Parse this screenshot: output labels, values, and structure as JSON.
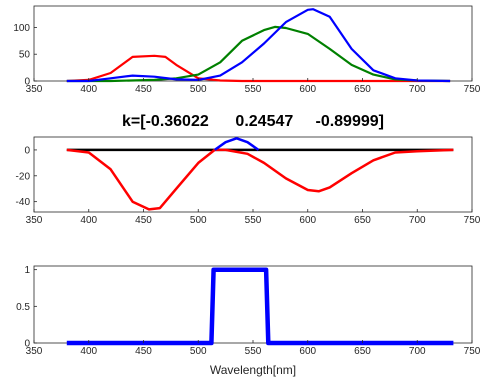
{
  "chart_data": [
    {
      "type": "line",
      "title": "",
      "xlabel": "",
      "ylabel": "",
      "xlim": [
        350,
        750
      ],
      "ylim": [
        0,
        140
      ],
      "x_ticks": [
        "350",
        "400",
        "450",
        "500",
        "550",
        "600",
        "650",
        "700",
        "750"
      ],
      "y_ticks": [
        "0",
        "50",
        "100"
      ],
      "grid": false,
      "series": [
        {
          "color": "#ff0000",
          "x": [
            380,
            400,
            420,
            440,
            460,
            470,
            480,
            500,
            520,
            540,
            560,
            600,
            650,
            700,
            730
          ],
          "y": [
            0,
            2,
            15,
            45,
            47,
            45,
            30,
            5,
            1,
            0,
            0,
            0,
            0,
            0,
            0
          ]
        },
        {
          "color": "#008000",
          "x": [
            380,
            420,
            460,
            480,
            500,
            520,
            540,
            560,
            570,
            580,
            600,
            620,
            640,
            660,
            680,
            700,
            730
          ],
          "y": [
            0,
            0,
            2,
            5,
            12,
            35,
            75,
            95,
            101,
            99,
            88,
            60,
            30,
            12,
            3,
            1,
            0
          ]
        },
        {
          "color": "#0000ff",
          "x": [
            380,
            400,
            420,
            440,
            460,
            480,
            500,
            520,
            540,
            560,
            580,
            600,
            605,
            620,
            640,
            660,
            680,
            700,
            730
          ],
          "y": [
            0,
            0,
            5,
            10,
            8,
            3,
            2,
            10,
            35,
            70,
            110,
            133,
            134,
            120,
            60,
            20,
            5,
            1,
            0
          ]
        }
      ]
    },
    {
      "type": "line",
      "title": "k=[-0.36022      0.24547     -0.89999]",
      "xlabel": "",
      "ylabel": "",
      "xlim": [
        350,
        750
      ],
      "ylim": [
        -48,
        10
      ],
      "x_ticks": [
        "350",
        "400",
        "450",
        "500",
        "550",
        "600",
        "650",
        "700",
        "750"
      ],
      "y_ticks": [
        "-40",
        "-20",
        "0"
      ],
      "grid": false,
      "series": [
        {
          "color": "#000000",
          "x": [
            380,
            733
          ],
          "y": [
            0,
            0
          ]
        },
        {
          "color": "#ff0000",
          "x": [
            380,
            400,
            420,
            440,
            455,
            465,
            480,
            500,
            515,
            525,
            545,
            560,
            580,
            600,
            610,
            620,
            640,
            660,
            680,
            700,
            733
          ],
          "y": [
            0,
            -2,
            -15,
            -40,
            -46,
            -45,
            -30,
            -10,
            0,
            0,
            -3,
            -10,
            -22,
            -31,
            -32,
            -29,
            -18,
            -8,
            -2,
            -1,
            0
          ]
        },
        {
          "color": "#0000ff",
          "x": [
            515,
            525,
            535,
            545,
            555
          ],
          "y": [
            0,
            6,
            9,
            6,
            0
          ]
        }
      ]
    },
    {
      "type": "line",
      "title": "",
      "xlabel": "Wavelength[nm]",
      "ylabel": "",
      "xlim": [
        350,
        750
      ],
      "ylim": [
        0,
        1.05
      ],
      "x_ticks": [
        "350",
        "400",
        "450",
        "500",
        "550",
        "600",
        "650",
        "700",
        "750"
      ],
      "y_ticks": [
        "0",
        "0.5",
        "1"
      ],
      "grid": false,
      "series": [
        {
          "color": "#0000ff",
          "x": [
            380,
            512,
            514,
            562,
            564,
            733
          ],
          "y": [
            0,
            0,
            1,
            1,
            0,
            0
          ]
        }
      ]
    }
  ]
}
